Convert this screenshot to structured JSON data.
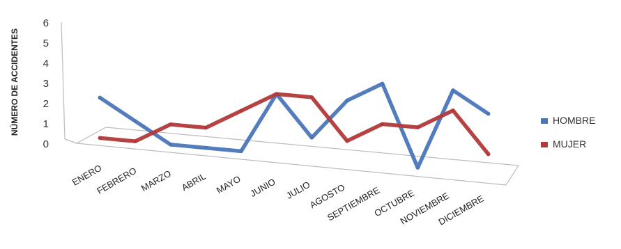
{
  "chart_data": {
    "type": "line",
    "ylabel": "NÚMERO DE ACCIDENTES",
    "xlabel": "",
    "ylim": [
      0,
      6
    ],
    "yticks": [
      "0",
      "1",
      "2",
      "3",
      "4",
      "5",
      "6"
    ],
    "categories": [
      "ENERO",
      "FEBRERO",
      "MARZO",
      "ABRIL",
      "MAYO",
      "JUNIO",
      "JULIO",
      "AGOSTO",
      "SEPTIEMBRE",
      "OCTUBRE",
      "NOVIEMBRE",
      "DICIEMBRE"
    ],
    "series": [
      {
        "name": "HOMBRE",
        "color": "#4a76b8",
        "values": [
          2,
          1,
          0,
          0,
          0,
          3,
          1,
          3,
          4,
          0,
          4,
          3
        ]
      },
      {
        "name": "MUJER",
        "color": "#b2393a",
        "values": [
          0,
          0,
          1,
          1,
          2,
          3,
          3,
          1,
          2,
          2,
          3,
          1
        ]
      }
    ],
    "legend_position": "right",
    "grid": false,
    "perspective": "3d"
  }
}
